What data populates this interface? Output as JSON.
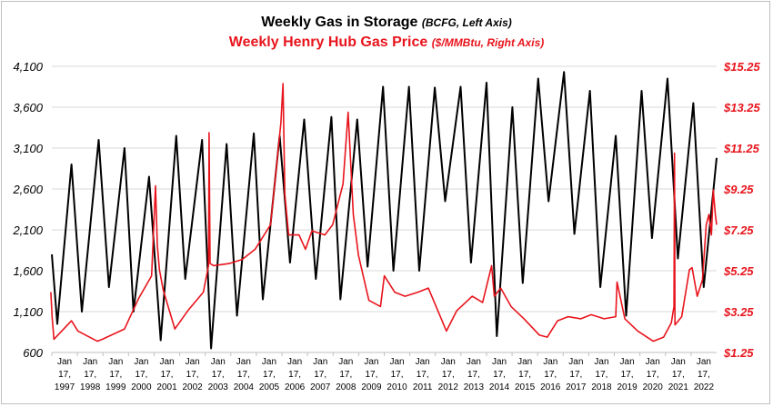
{
  "chart_data": {
    "type": "line",
    "title": "Weekly Gas in Storage",
    "title_note": "(BCFG, Left Axis)",
    "subtitle": "Weekly Henry Hub Gas Price",
    "subtitle_note": "($/MMBtu, Right Axis)",
    "left_axis": {
      "min": 600,
      "max": 4100,
      "ticks": [
        "4,100",
        "3,600",
        "3,100",
        "2,600",
        "2,100",
        "1,600",
        "1,100",
        "600"
      ]
    },
    "right_axis": {
      "min": 1.25,
      "max": 15.25,
      "ticks": [
        "$15.25",
        "$13.25",
        "$11.25",
        "$9.25",
        "$7.25",
        "$5.25",
        "$3.25",
        "$1.25"
      ]
    },
    "x_labels": [
      [
        "Jan",
        "17,",
        "1997"
      ],
      [
        "Jan",
        "17,",
        "1998"
      ],
      [
        "Jan",
        "17,",
        "1999"
      ],
      [
        "Jan",
        "17,",
        "2000"
      ],
      [
        "Jan",
        "17,",
        "2001"
      ],
      [
        "Jan",
        "17,",
        "2002"
      ],
      [
        "Jan",
        "17,",
        "2003"
      ],
      [
        "Jan",
        "17,",
        "2004"
      ],
      [
        "Jan",
        "17,",
        "2005"
      ],
      [
        "Jan",
        "17,",
        "2006"
      ],
      [
        "Jan",
        "17,",
        "2007"
      ],
      [
        "Jan",
        "17,",
        "2008"
      ],
      [
        "Jan",
        "17,",
        "2009"
      ],
      [
        "Jan",
        "17,",
        "2010"
      ],
      [
        "Jan",
        "17,",
        "2011"
      ],
      [
        "Jan",
        "17,",
        "2012"
      ],
      [
        "Jan",
        "17,",
        "2013"
      ],
      [
        "Jan",
        "17,",
        "2014"
      ],
      [
        "Jan",
        "17,",
        "2015"
      ],
      [
        "Jan",
        "17,",
        "2016"
      ],
      [
        "Jan",
        "17,",
        "2017"
      ],
      [
        "Jan",
        "17,",
        "2018"
      ],
      [
        "Jan",
        "17,",
        "2019"
      ],
      [
        "Jan",
        "17,",
        "2020"
      ],
      [
        "Jan",
        "17,",
        "2021"
      ],
      [
        "Jan",
        "17,",
        "2022"
      ]
    ],
    "series": [
      {
        "name": "Weekly Gas in Storage",
        "axis": "left",
        "color": "#000000",
        "x": [
          1997.04,
          1997.25,
          1997.8,
          1998.2,
          1998.85,
          1999.25,
          1999.85,
          2000.2,
          2000.8,
          2001.25,
          2001.85,
          2002.2,
          2002.85,
          2003.2,
          2003.8,
          2004.2,
          2004.85,
          2005.2,
          2005.85,
          2006.25,
          2006.8,
          2007.25,
          2007.85,
          2008.2,
          2008.85,
          2009.25,
          2009.85,
          2010.25,
          2010.85,
          2011.25,
          2011.85,
          2012.25,
          2012.85,
          2013.25,
          2013.85,
          2014.25,
          2014.85,
          2015.25,
          2015.85,
          2016.25,
          2016.85,
          2017.25,
          2017.85,
          2018.25,
          2018.85,
          2019.25,
          2019.85,
          2020.25,
          2020.85,
          2021.25,
          2021.85,
          2022.25,
          2022.75
        ],
        "y": [
          1800,
          950,
          2900,
          1100,
          3200,
          1400,
          3100,
          1100,
          2750,
          750,
          3250,
          1500,
          3200,
          650,
          3150,
          1050,
          3280,
          1250,
          3250,
          1700,
          3450,
          1500,
          3480,
          1250,
          3450,
          1650,
          3850,
          1600,
          3850,
          1600,
          3840,
          2450,
          3850,
          1700,
          3900,
          800,
          3600,
          1450,
          3950,
          2450,
          4030,
          2050,
          3800,
          1400,
          3250,
          1050,
          3800,
          2000,
          3950,
          1750,
          3650,
          1400,
          2980
        ]
      },
      {
        "name": "Weekly Henry Hub Gas Price",
        "axis": "right",
        "color": "#e8141c",
        "x": [
          1997.0,
          1997.05,
          1997.12,
          1997.8,
          1998.05,
          1998.8,
          1999.0,
          1999.85,
          2000.4,
          2000.9,
          2001.05,
          2001.12,
          2001.2,
          2001.35,
          2001.8,
          2002.3,
          2002.9,
          2003.1,
          2003.12,
          2003.16,
          2003.3,
          2003.9,
          2004.4,
          2004.9,
          2005.5,
          2005.9,
          2005.98,
          2006.05,
          2006.2,
          2006.6,
          2006.85,
          2007.1,
          2007.6,
          2007.9,
          2008.3,
          2008.5,
          2008.7,
          2008.9,
          2009.3,
          2009.75,
          2009.9,
          2010.3,
          2010.7,
          2011.2,
          2011.6,
          2012.3,
          2012.7,
          2013.3,
          2013.7,
          2014.05,
          2014.15,
          2014.4,
          2014.8,
          2015.3,
          2015.9,
          2016.2,
          2016.6,
          2017.0,
          2017.5,
          2017.9,
          2018.4,
          2018.85,
          2018.9,
          2019.2,
          2019.7,
          2020.3,
          2020.7,
          2021.0,
          2021.1,
          2021.12,
          2021.14,
          2021.4,
          2021.7,
          2021.8,
          2022.0,
          2022.2,
          2022.35,
          2022.45,
          2022.55,
          2022.62,
          2022.7,
          2022.75
        ],
        "y": [
          4.2,
          3.0,
          1.9,
          2.8,
          2.3,
          1.8,
          1.9,
          2.4,
          3.9,
          5.0,
          9.4,
          6.5,
          5.3,
          4.3,
          2.4,
          3.3,
          4.2,
          5.5,
          12.0,
          5.6,
          5.5,
          5.6,
          5.8,
          6.3,
          7.5,
          12.5,
          14.4,
          9.0,
          7.0,
          7.0,
          6.3,
          7.2,
          7.0,
          7.5,
          9.5,
          13.0,
          8.0,
          6.0,
          3.8,
          3.5,
          5.0,
          4.2,
          4.0,
          4.2,
          4.4,
          2.3,
          3.3,
          4.0,
          3.7,
          5.5,
          4.0,
          4.4,
          3.5,
          2.9,
          2.1,
          2.0,
          2.8,
          3.0,
          2.9,
          3.1,
          2.9,
          3.0,
          4.7,
          2.9,
          2.3,
          1.8,
          2.0,
          2.7,
          3.5,
          11.0,
          2.6,
          3.0,
          5.3,
          5.4,
          4.0,
          4.8,
          7.5,
          8.0,
          7.0,
          9.2,
          8.0,
          7.5
        ]
      }
    ]
  }
}
